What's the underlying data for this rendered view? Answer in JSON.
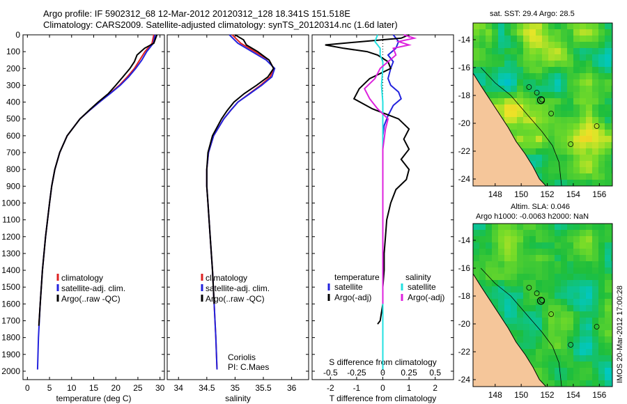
{
  "title": {
    "line1": "Argo profile: IF 5902312_68 12-Mar-2012 20120312_128 18.341S 151.518E",
    "line2": "Climatology: CARS2009. Satellite-adjusted climatology: synTS_20120314.nc (1.6d later)"
  },
  "colors": {
    "climatology": "#dd2222",
    "satellite": "#2222dd",
    "argo": "#000000",
    "sal_sat": "#22e0e0",
    "sal_argo": "#dd22dd",
    "land": "#f5c69a",
    "sea_low": "#22bb33",
    "sea_high": "#e8e822"
  },
  "chart_data": [
    {
      "type": "line",
      "name": "temperature",
      "xlabel": "temperature (deg C)",
      "ylabel": "",
      "xlim": [
        -1,
        31
      ],
      "ylim": [
        2050,
        0
      ],
      "xticks": [
        "0",
        "5",
        "10",
        "15",
        "20",
        "25",
        "30"
      ],
      "xtick_values": [
        0,
        5,
        10,
        15,
        20,
        25,
        30
      ],
      "yticks": [
        "0",
        "100",
        "200",
        "300",
        "400",
        "500",
        "600",
        "700",
        "800",
        "900",
        "1000",
        "1100",
        "1200",
        "1300",
        "1400",
        "1500",
        "1600",
        "1700",
        "1800",
        "1900",
        "2000"
      ],
      "legend": [
        "climatology",
        "satellite-adj. clim.",
        "Argo(..raw -QC)"
      ],
      "series": [
        {
          "name": "climatology",
          "depth": [
            0,
            50,
            100,
            150,
            200,
            250,
            300,
            350,
            400,
            450,
            500,
            600,
            700,
            800,
            900,
            1000,
            1200,
            1400,
            1600,
            1730
          ],
          "values": [
            28.6,
            28.2,
            26.6,
            25.4,
            24.2,
            22.6,
            20.8,
            18.6,
            16.3,
            14.0,
            11.9,
            9.0,
            7.3,
            6.2,
            5.5,
            5.0,
            4.1,
            3.4,
            2.9,
            2.6
          ]
        },
        {
          "name": "satellite-adj. clim.",
          "depth": [
            0,
            50,
            100,
            150,
            200,
            250,
            300,
            350,
            400,
            450,
            500,
            600,
            700,
            800,
            900,
            1000,
            1200,
            1400,
            1600,
            1800,
            1990
          ],
          "values": [
            28.9,
            28.5,
            27.0,
            25.9,
            24.5,
            22.9,
            21.0,
            18.7,
            16.3,
            14.0,
            11.9,
            9.0,
            7.3,
            6.2,
            5.5,
            5.0,
            4.1,
            3.4,
            2.9,
            2.5,
            2.3
          ]
        },
        {
          "name": "Argo(..raw -QC)",
          "depth": [
            0,
            50,
            80,
            120,
            160,
            200,
            250,
            300,
            350,
            400,
            450,
            500,
            600,
            700,
            800,
            900,
            1000,
            1200,
            1400,
            1600,
            1730
          ],
          "values": [
            29.3,
            28.6,
            26.5,
            24.8,
            24.2,
            23.2,
            21.6,
            20.0,
            18.3,
            16.0,
            13.9,
            11.9,
            9.0,
            7.3,
            6.2,
            5.5,
            5.0,
            4.1,
            3.4,
            2.9,
            2.6
          ]
        }
      ]
    },
    {
      "type": "line",
      "name": "salinity",
      "xlabel": "salinity",
      "xlim": [
        33.8,
        36.3
      ],
      "ylim": [
        2050,
        0
      ],
      "xticks": [
        "34",
        "34.5",
        "35",
        "35.5",
        "36"
      ],
      "xtick_values": [
        34,
        34.5,
        35,
        35.5,
        36
      ],
      "legend": [
        "climatology",
        "satellite-adj. clim.",
        "Argo(..raw -QC)"
      ],
      "annotation": [
        "Coriolis",
        "PI: C.Maes"
      ],
      "series": [
        {
          "name": "climatology",
          "depth": [
            0,
            50,
            100,
            150,
            200,
            250,
            300,
            350,
            400,
            450,
            500,
            600,
            700,
            800,
            900,
            1000,
            1200,
            1400,
            1600,
            1800,
            1990
          ],
          "values": [
            34.95,
            35.1,
            35.35,
            35.6,
            35.68,
            35.62,
            35.45,
            35.25,
            35.05,
            34.92,
            34.8,
            34.62,
            34.53,
            34.5,
            34.5,
            34.52,
            34.56,
            34.6,
            34.63,
            34.66,
            34.68
          ]
        },
        {
          "name": "satellite-adj. clim.",
          "depth": [
            0,
            50,
            100,
            150,
            200,
            250,
            300,
            350,
            400,
            450,
            500,
            600,
            700,
            800,
            900,
            1000,
            1200,
            1400,
            1600,
            1800,
            1990
          ],
          "values": [
            34.9,
            35.05,
            35.3,
            35.55,
            35.7,
            35.65,
            35.47,
            35.26,
            35.05,
            34.92,
            34.8,
            34.62,
            34.53,
            34.5,
            34.5,
            34.52,
            34.56,
            34.6,
            34.63,
            34.66,
            34.68
          ]
        },
        {
          "name": "Argo(..raw -QC)",
          "depth": [
            0,
            30,
            60,
            100,
            150,
            200,
            250,
            300,
            350,
            400,
            450,
            500,
            600,
            700,
            800,
            900,
            1000,
            1200,
            1400,
            1600
          ],
          "values": [
            35.0,
            35.15,
            35.2,
            35.4,
            35.6,
            35.68,
            35.58,
            35.38,
            35.16,
            34.98,
            34.86,
            34.76,
            34.6,
            34.52,
            34.5,
            34.5,
            34.52,
            34.56,
            34.6,
            34.63
          ]
        }
      ]
    },
    {
      "type": "line",
      "name": "differences",
      "xlabel": "T difference from climatology",
      "xlabel_top": "S difference from climatology",
      "xlim": [
        -2.7,
        2.7
      ],
      "ylim": [
        2050,
        0
      ],
      "xticks": [
        "-2",
        "-1",
        "0",
        "1",
        "2"
      ],
      "xtick_values": [
        -2,
        -1,
        0,
        1,
        2
      ],
      "xticks_top": [
        "-0.5",
        "-0.25",
        "0",
        "0.25",
        "0.5"
      ],
      "xtick_top_values": [
        -2,
        -1,
        0,
        1,
        2
      ],
      "legend_headers": [
        "temperature",
        "salinity"
      ],
      "legend": [
        "satellite",
        "Argo(-adj)",
        "satellite",
        "Argo(-adj)"
      ],
      "series": [
        {
          "name": "temperature satellite",
          "depth": [
            0,
            40,
            80,
            120,
            160,
            200,
            260,
            300,
            340,
            380,
            420,
            480,
            540,
            600,
            700,
            800,
            1000,
            1200,
            1500,
            1800,
            1990
          ],
          "values": [
            0.4,
            0.6,
            0.5,
            0.2,
            0.4,
            0.3,
            0.2,
            0.3,
            0.6,
            0.7,
            0.4,
            0.2,
            0.05,
            0.0,
            0.0,
            0.0,
            0.0,
            0.0,
            0.0,
            0.0,
            0.0
          ]
        },
        {
          "name": "temperature Argo(-adj)",
          "depth": [
            0,
            20,
            40,
            60,
            80,
            100,
            120,
            160,
            200,
            260,
            320,
            380,
            440,
            500,
            560,
            620,
            680,
            740,
            800,
            860,
            920,
            1000,
            1100,
            1200,
            1300,
            1400,
            1500,
            1600,
            1700,
            1720
          ],
          "values": [
            1.0,
            0.7,
            -0.8,
            -2.2,
            -1.5,
            -0.6,
            -0.2,
            0.2,
            0.3,
            -0.5,
            -0.9,
            -1.1,
            -0.4,
            0.6,
            1.0,
            0.8,
            1.0,
            0.7,
            1.0,
            0.9,
            0.5,
            0.3,
            0.15,
            0.1,
            0.05,
            0.05,
            0.0,
            0.0,
            -0.1,
            -0.2
          ]
        },
        {
          "name": "salinity satellite",
          "depth": [
            0,
            40,
            80,
            120,
            160,
            200,
            300,
            400,
            500,
            600,
            800,
            1000,
            1400,
            1800,
            1990
          ],
          "values": [
            -0.2,
            -0.3,
            -0.1,
            -0.1,
            0.0,
            0.0,
            -0.05,
            0.0,
            0.0,
            0.0,
            0.0,
            0.0,
            0.0,
            0.0,
            0.0
          ]
        },
        {
          "name": "salinity Argo(-adj)",
          "depth": [
            0,
            20,
            40,
            60,
            80,
            120,
            160,
            200,
            260,
            320,
            380,
            440,
            500,
            560,
            620,
            680,
            740,
            800,
            900,
            1000,
            1200,
            1400,
            1500,
            1600
          ],
          "values": [
            0.8,
            1.2,
            0.6,
            1.0,
            0.4,
            0.5,
            0.2,
            -0.1,
            -0.3,
            -0.7,
            -0.5,
            -0.2,
            0.2,
            0.1,
            0.05,
            0.0,
            0.0,
            0.0,
            0.0,
            0.0,
            0.0,
            0.0,
            0.0,
            0.0
          ]
        }
      ]
    },
    {
      "type": "heatmap",
      "name": "sst_map",
      "title": "sat. SST: 29.4 Argo: 28.5",
      "xticks": [
        "148",
        "150",
        "152",
        "154",
        "156"
      ],
      "xtick_values": [
        148,
        150,
        152,
        154,
        156
      ],
      "yticks": [
        "-14",
        "-16",
        "-18",
        "-20",
        "-22",
        "-24"
      ],
      "ytick_values": [
        -14,
        -16,
        -18,
        -20,
        -22,
        -24
      ],
      "xlim": [
        146.3,
        157.0
      ],
      "ylim": [
        -24.5,
        -12.8
      ],
      "argo_position": [
        151.518,
        -18.341
      ]
    },
    {
      "type": "heatmap",
      "name": "sla_map",
      "title": "Altim. SLA: 0.046",
      "subtitle": "Argo h1000: -0.0063 h2000: NaN",
      "xticks": [
        "148",
        "150",
        "152",
        "154",
        "156"
      ],
      "xtick_values": [
        148,
        150,
        152,
        154,
        156
      ],
      "yticks": [
        "-14",
        "-16",
        "-18",
        "-20",
        "-22",
        "-24"
      ],
      "ytick_values": [
        -14,
        -16,
        -18,
        -20,
        -22,
        -24
      ],
      "xlim": [
        146.3,
        157.0
      ],
      "ylim": [
        -24.5,
        -12.8
      ],
      "argo_position": [
        151.518,
        -18.341
      ]
    }
  ],
  "credit": "IMOS 20-Mar-2012 17:00:28"
}
